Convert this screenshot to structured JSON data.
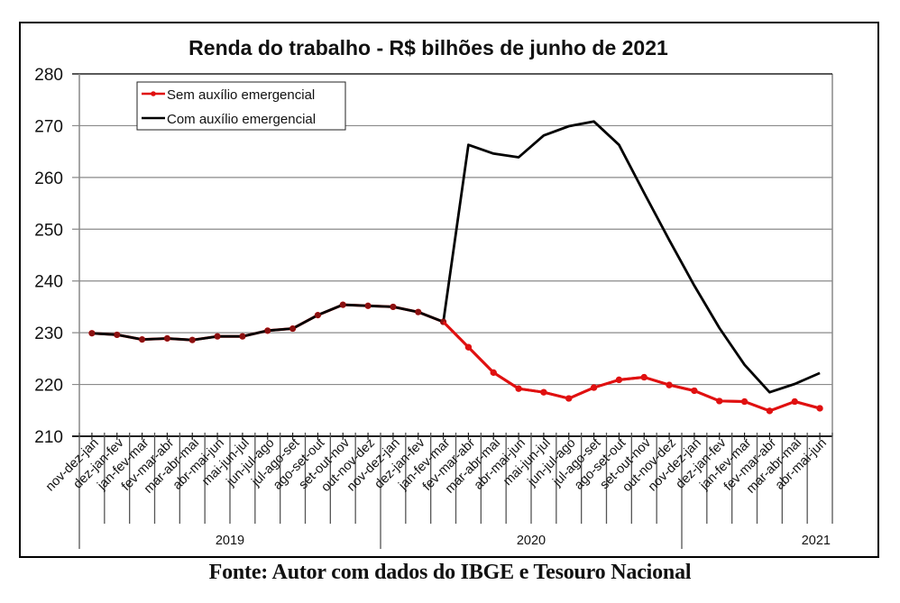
{
  "chart_data": {
    "type": "line",
    "title": "Renda do trabalho - R$ bilhões de junho de 2021",
    "xlabel": "",
    "ylabel": "",
    "ylim": [
      210,
      280
    ],
    "yticks": [
      210,
      220,
      230,
      240,
      250,
      260,
      270,
      280
    ],
    "grid": true,
    "legend_position": "top-left inside",
    "categories": [
      "nov-dez-jan",
      "dez-jan-fev",
      "jan-fev-mar",
      "fev-mar-abr",
      "mar-abr-mai",
      "abr-mai-jun",
      "mai-jun-jul",
      "jun-jul-ago",
      "jul-ago-set",
      "ago-set-out",
      "set-out-nov",
      "out-nov-dez",
      "nov-dez-jan",
      "dez-jan-fev",
      "jan-fev-mar",
      "fev-mar-abr",
      "mar-abr-mai",
      "abr-mai-jun",
      "mai-jun-jul",
      "jun-jul-ago",
      "jul-ago-set",
      "ago-set-out",
      "set-out-nov",
      "out-nov-dez",
      "nov-dez-jan",
      "dez-jan-fev",
      "jan-fev-mar",
      "fev-mar-abr",
      "mar-abr-mai",
      "abr-mai-jun"
    ],
    "year_groups": [
      {
        "label": "2019",
        "start": 0,
        "count": 12
      },
      {
        "label": "2020",
        "start": 12,
        "count": 12
      },
      {
        "label": "2021",
        "start": 24,
        "count": 6
      }
    ],
    "series": [
      {
        "name": "Sem auxílio emergencial",
        "color": "#e01010",
        "marker": "circle",
        "values": [
          229.9,
          229.6,
          228.7,
          228.9,
          228.6,
          229.3,
          229.3,
          230.4,
          230.8,
          233.4,
          235.4,
          235.2,
          235.0,
          234.0,
          232.1,
          227.2,
          222.3,
          219.2,
          218.5,
          217.3,
          219.4,
          220.9,
          221.4,
          219.9,
          218.8,
          216.8,
          216.7,
          214.9,
          216.7,
          215.4
        ]
      },
      {
        "name": "Com auxílio emergencial",
        "color": "#000000",
        "marker": "none",
        "values": [
          229.9,
          229.6,
          228.7,
          228.9,
          228.6,
          229.3,
          229.3,
          230.4,
          230.8,
          233.4,
          235.4,
          235.2,
          235.0,
          234.0,
          232.1,
          266.3,
          264.6,
          263.9,
          268.1,
          269.9,
          270.8,
          266.3,
          257.0,
          247.9,
          239.1,
          230.9,
          223.8,
          218.5,
          220.1,
          222.2
        ]
      }
    ]
  },
  "source_note": "Fonte: Autor com dados do IBGE e Tesouro Nacional"
}
